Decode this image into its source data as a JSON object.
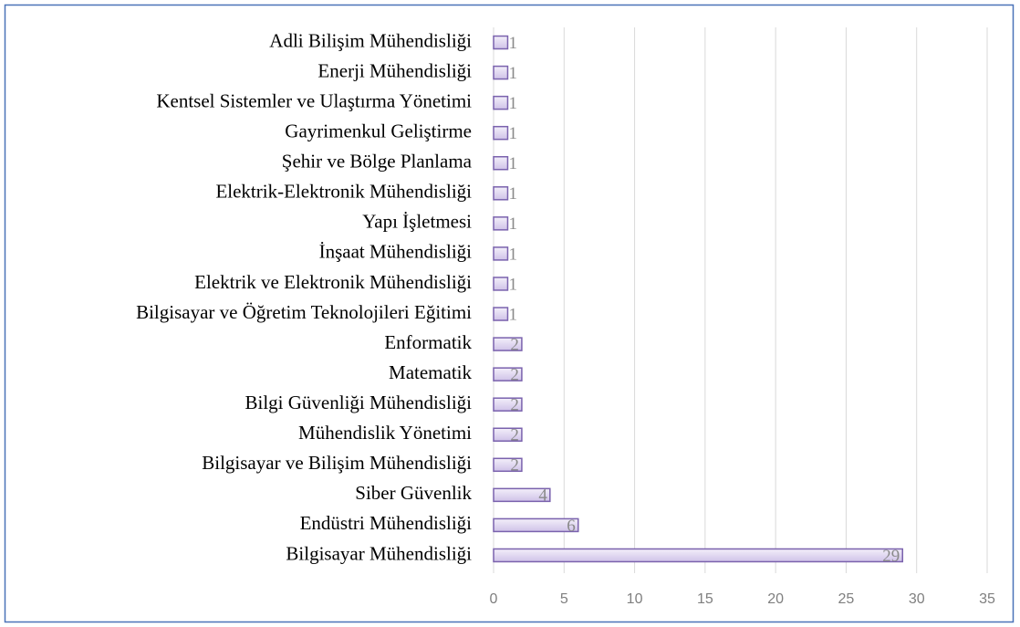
{
  "chart_data": {
    "type": "barh",
    "categories": [
      "Adli Bilişim Mühendisliği",
      "Enerji Mühendisliği",
      "Kentsel Sistemler ve Ulaştırma Yönetimi",
      "Gayrimenkul Geliştirme",
      "Şehir ve Bölge Planlama",
      "Elektrik-Elektronik Mühendisliği",
      "Yapı İşletmesi",
      "İnşaat Mühendisliği",
      "Elektrik ve Elektronik Mühendisliği",
      "Bilgisayar ve Öğretim Teknolojileri Eğitimi",
      "Enformatik",
      "Matematik",
      "Bilgi Güvenliği Mühendisliği",
      "Mühendislik Yönetimi",
      "Bilgisayar ve Bilişim Mühendisliği",
      "Siber Güvenlik",
      "Endüstri Mühendisliği",
      "Bilgisayar Mühendisliği"
    ],
    "values": [
      1,
      1,
      1,
      1,
      1,
      1,
      1,
      1,
      1,
      1,
      2,
      2,
      2,
      2,
      2,
      4,
      6,
      29
    ],
    "color": "#e4dcf2",
    "xlim": [
      0,
      35
    ],
    "xticks": [
      0,
      5,
      10,
      15,
      20,
      25,
      30,
      35
    ],
    "grid": true
  }
}
